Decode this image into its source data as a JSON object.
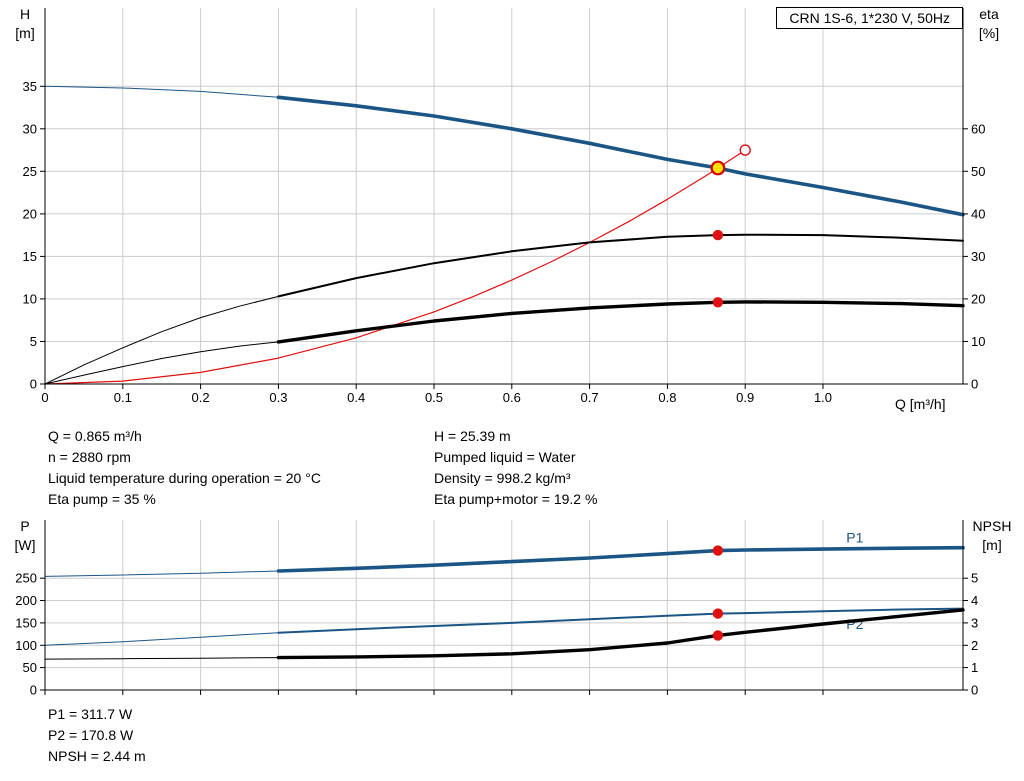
{
  "header": {
    "title": "CRN 1S-6, 1*230 V, 50Hz"
  },
  "colors": {
    "blue": "#1b5586",
    "red": "#e01010",
    "yellow": "#ffdf00",
    "duty_ring": "#d00000",
    "black": "#000000",
    "grid": "#cccccc"
  },
  "duty_info": {
    "column1": [
      "Q = 0.865 m³/h",
      "n = 2880 rpm",
      "Liquid temperature during operation = 20 °C",
      "Eta pump = 35 %"
    ],
    "column2": [
      "H = 25.39 m",
      "Pumped liquid = Water",
      "Density = 998.2 kg/m³",
      "Eta pump+motor = 19.2 %"
    ]
  },
  "power_info": [
    "P1 = 311.7 W",
    "P2 = 170.8 W",
    "NPSH = 2.44 m"
  ],
  "chart_data": [
    {
      "type": "line",
      "title": "CRN 1S-6, 1*230 V, 50Hz",
      "x_axis": {
        "label": "Q [m³/h]",
        "min": 0,
        "max": 1.18,
        "ticks": {
          "values": [
            0,
            0.1,
            0.2,
            0.3,
            0.4,
            0.5,
            0.6,
            0.7,
            0.8,
            0.9,
            1.0
          ],
          "labels": [
            "0",
            "0.1",
            "0.2",
            "0.3",
            "0.4",
            "0.5",
            "0.6",
            "0.7",
            "0.8",
            "0.9",
            "1.0"
          ]
        }
      },
      "left_axis": {
        "label": "H",
        "unit": "[m]",
        "min": 0,
        "max": 44.2,
        "ticks": {
          "values": [
            0,
            5,
            10,
            15,
            20,
            25,
            30,
            35
          ],
          "labels": [
            "0",
            "5",
            "10",
            "15",
            "20",
            "25",
            "30",
            "35"
          ]
        }
      },
      "right_axis": {
        "label": "eta",
        "unit": "[%]",
        "min": 0,
        "max": 88.4,
        "ticks": {
          "values": [
            0,
            10,
            20,
            30,
            40,
            50,
            60
          ],
          "labels": [
            "0",
            "10",
            "20",
            "30",
            "40",
            "50",
            "60"
          ]
        }
      },
      "series": [
        {
          "name": "head-curve",
          "axis": "left",
          "color": "#1b5586",
          "width": 3.6,
          "thin_until": 0.3,
          "points": [
            [
              0,
              35.0
            ],
            [
              0.1,
              34.8
            ],
            [
              0.2,
              34.4
            ],
            [
              0.3,
              33.7
            ],
            [
              0.4,
              32.7
            ],
            [
              0.5,
              31.5
            ],
            [
              0.6,
              30.0
            ],
            [
              0.7,
              28.3
            ],
            [
              0.8,
              26.4
            ],
            [
              0.865,
              25.39
            ],
            [
              0.9,
              24.7
            ],
            [
              1.0,
              23.1
            ],
            [
              1.1,
              21.4
            ],
            [
              1.18,
              19.9
            ]
          ]
        },
        {
          "name": "system-curve",
          "axis": "left",
          "color": "#e01010",
          "width": 1.2,
          "points": [
            [
              0,
              0
            ],
            [
              0.1,
              0.34
            ],
            [
              0.2,
              1.36
            ],
            [
              0.3,
              3.05
            ],
            [
              0.4,
              5.43
            ],
            [
              0.5,
              8.48
            ],
            [
              0.55,
              10.26
            ],
            [
              0.6,
              12.21
            ],
            [
              0.65,
              14.34
            ],
            [
              0.7,
              16.63
            ],
            [
              0.75,
              19.08
            ],
            [
              0.8,
              21.71
            ],
            [
              0.85,
              24.51
            ],
            [
              0.865,
              25.39
            ],
            [
              0.9,
              27.5
            ]
          ]
        },
        {
          "name": "eta-pump-curve",
          "axis": "right",
          "color": "#000000",
          "width": 2,
          "thin_until": 0.3,
          "points": [
            [
              0,
              0
            ],
            [
              0.05,
              4.5
            ],
            [
              0.1,
              8.5
            ],
            [
              0.15,
              12.3
            ],
            [
              0.2,
              15.6
            ],
            [
              0.25,
              18.3
            ],
            [
              0.3,
              20.6
            ],
            [
              0.4,
              24.9
            ],
            [
              0.5,
              28.4
            ],
            [
              0.6,
              31.2
            ],
            [
              0.7,
              33.3
            ],
            [
              0.8,
              34.6
            ],
            [
              0.865,
              35.0
            ],
            [
              0.9,
              35.1
            ],
            [
              1.0,
              35.0
            ],
            [
              1.1,
              34.4
            ],
            [
              1.18,
              33.7
            ]
          ]
        },
        {
          "name": "eta-pump-motor-curve",
          "axis": "right",
          "color": "#000000",
          "width": 3.4,
          "thin_until": 0.3,
          "points": [
            [
              0,
              0
            ],
            [
              0.05,
              2.1
            ],
            [
              0.1,
              4.1
            ],
            [
              0.15,
              6.0
            ],
            [
              0.2,
              7.6
            ],
            [
              0.25,
              8.9
            ],
            [
              0.3,
              9.9
            ],
            [
              0.4,
              12.5
            ],
            [
              0.5,
              14.8
            ],
            [
              0.6,
              16.6
            ],
            [
              0.7,
              17.9
            ],
            [
              0.8,
              18.8
            ],
            [
              0.865,
              19.2
            ],
            [
              0.9,
              19.3
            ],
            [
              1.0,
              19.2
            ],
            [
              1.1,
              18.9
            ],
            [
              1.18,
              18.4
            ]
          ]
        }
      ],
      "markers": [
        {
          "kind": "dot",
          "axis": "right",
          "x": 0.865,
          "y": 35
        },
        {
          "kind": "dot",
          "axis": "right",
          "x": 0.865,
          "y": 19.2
        },
        {
          "kind": "open",
          "axis": "left",
          "x": 0.9,
          "y": 27.5
        },
        {
          "kind": "duty",
          "axis": "left",
          "x": 0.865,
          "y": 25.39
        }
      ]
    },
    {
      "type": "line",
      "title": "",
      "x_axis": {
        "label": "",
        "min": 0,
        "max": 1.18,
        "ticks": {
          "values": [
            0,
            0.1,
            0.2,
            0.3,
            0.4,
            0.5,
            0.6,
            0.7,
            0.8,
            0.9,
            1.0
          ],
          "labels": []
        }
      },
      "left_axis": {
        "label": "P",
        "unit": "[W]",
        "min": 0,
        "max": 380,
        "ticks": {
          "values": [
            0,
            50,
            100,
            150,
            200,
            250
          ],
          "labels": [
            "0",
            "50",
            "100",
            "150",
            "200",
            "250"
          ]
        }
      },
      "right_axis": {
        "label": "NPSH",
        "unit": "[m]",
        "min": 0,
        "max": 7.6,
        "ticks": {
          "values": [
            0,
            1,
            2,
            3,
            4,
            5
          ],
          "labels": [
            "0",
            "1",
            "2",
            "3",
            "4",
            "5"
          ]
        }
      },
      "series": [
        {
          "name": "p1-curve",
          "axis": "left",
          "color": "#1b5586",
          "width": 3.6,
          "thin_until": 0.3,
          "label": {
            "text": "P1",
            "x": 1.03,
            "y": 330
          },
          "points": [
            [
              0,
              254
            ],
            [
              0.1,
              257
            ],
            [
              0.2,
              261
            ],
            [
              0.3,
              266
            ],
            [
              0.4,
              272
            ],
            [
              0.5,
              279
            ],
            [
              0.6,
              287
            ],
            [
              0.7,
              295
            ],
            [
              0.8,
              305
            ],
            [
              0.865,
              311.7
            ],
            [
              0.9,
              313
            ],
            [
              1.0,
              315
            ],
            [
              1.1,
              317
            ],
            [
              1.18,
              318
            ]
          ]
        },
        {
          "name": "p2-curve",
          "axis": "left",
          "color": "#1b5586",
          "width": 2,
          "thin_until": 0.3,
          "label": {
            "text": "P2",
            "x": 1.03,
            "y": 136
          },
          "points": [
            [
              0,
              100
            ],
            [
              0.1,
              108
            ],
            [
              0.2,
              118
            ],
            [
              0.3,
              128
            ],
            [
              0.4,
              136
            ],
            [
              0.5,
              143
            ],
            [
              0.6,
              150
            ],
            [
              0.7,
              158
            ],
            [
              0.8,
              166
            ],
            [
              0.865,
              170.8
            ],
            [
              0.9,
              172
            ],
            [
              1.0,
              176
            ],
            [
              1.1,
              180
            ],
            [
              1.18,
              182
            ]
          ]
        },
        {
          "name": "npsh-curve",
          "axis": "right",
          "color": "#000000",
          "width": 3.4,
          "thin_until": 0.3,
          "points": [
            [
              0,
              1.38
            ],
            [
              0.1,
              1.4
            ],
            [
              0.2,
              1.42
            ],
            [
              0.3,
              1.45
            ],
            [
              0.4,
              1.48
            ],
            [
              0.5,
              1.53
            ],
            [
              0.6,
              1.62
            ],
            [
              0.7,
              1.8
            ],
            [
              0.8,
              2.1
            ],
            [
              0.865,
              2.44
            ],
            [
              0.9,
              2.58
            ],
            [
              1.0,
              2.95
            ],
            [
              1.1,
              3.3
            ],
            [
              1.18,
              3.58
            ]
          ]
        }
      ],
      "markers": [
        {
          "kind": "dot",
          "axis": "left",
          "x": 0.865,
          "y": 311.7
        },
        {
          "kind": "dot",
          "axis": "left",
          "x": 0.865,
          "y": 170.8
        },
        {
          "kind": "dot",
          "axis": "right",
          "x": 0.865,
          "y": 2.44
        }
      ]
    }
  ]
}
